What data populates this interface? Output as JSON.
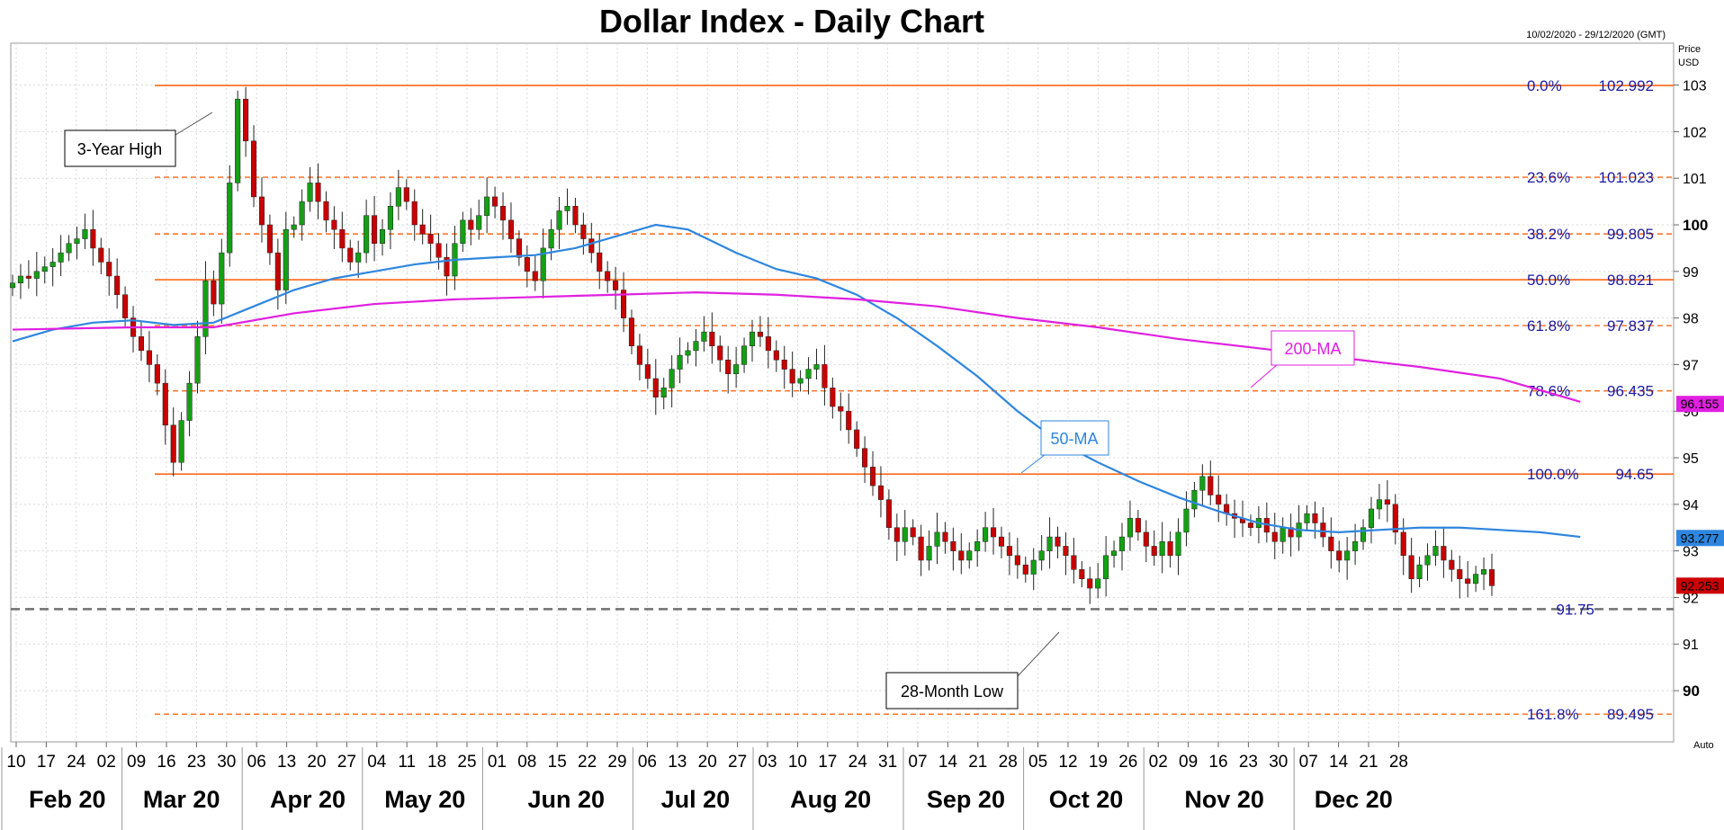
{
  "chart_data": {
    "type": "candlestick",
    "title": "Dollar Index - Daily Chart",
    "date_range": "10/02/2020 - 29/12/2020 (GMT)",
    "price_label": "Price",
    "currency_label": "USD",
    "auto_label": "Auto",
    "ylim": [
      88.9,
      103.9
    ],
    "y_ticks": [
      {
        "value": 90,
        "label": "90",
        "bold": true
      },
      {
        "value": 91,
        "label": "91"
      },
      {
        "value": 92,
        "label": "92"
      },
      {
        "value": 93,
        "label": "93"
      },
      {
        "value": 94,
        "label": "94"
      },
      {
        "value": 95,
        "label": "95"
      },
      {
        "value": 96,
        "label": "96"
      },
      {
        "value": 97,
        "label": "97"
      },
      {
        "value": 98,
        "label": "98"
      },
      {
        "value": 99,
        "label": "99"
      },
      {
        "value": 100,
        "label": "100",
        "bold": true
      },
      {
        "value": 101,
        "label": "101"
      },
      {
        "value": 102,
        "label": "102"
      },
      {
        "value": 103,
        "label": "103"
      }
    ],
    "x_day_labels": [
      "10",
      "17",
      "24",
      "02",
      "09",
      "16",
      "23",
      "30",
      "06",
      "13",
      "20",
      "27",
      "04",
      "11",
      "18",
      "25",
      "01",
      "08",
      "15",
      "22",
      "29",
      "06",
      "13",
      "20",
      "27",
      "03",
      "10",
      "17",
      "24",
      "31",
      "07",
      "14",
      "21",
      "28",
      "05",
      "12",
      "19",
      "26",
      "02",
      "09",
      "16",
      "23",
      "30",
      "07",
      "14",
      "21",
      "28"
    ],
    "x_month_labels": [
      "Feb 20",
      "Mar 20",
      "Apr 20",
      "May 20",
      "Jun 20",
      "Jul 20",
      "Aug 20",
      "Sep 20",
      "Oct 20",
      "Nov 20",
      "Dec 20"
    ],
    "fibonacci_levels": [
      {
        "pct": "0.0%",
        "value": "102.992",
        "price": 102.992,
        "style": "solid"
      },
      {
        "pct": "23.6%",
        "value": "101.023",
        "price": 101.023,
        "style": "dashed"
      },
      {
        "pct": "38.2%",
        "value": "99.805",
        "price": 99.805,
        "style": "dashed"
      },
      {
        "pct": "50.0%",
        "value": "98.821",
        "price": 98.821,
        "style": "solid"
      },
      {
        "pct": "61.8%",
        "value": "97.837",
        "price": 97.837,
        "style": "dashed"
      },
      {
        "pct": "78.6%",
        "value": "96.435",
        "price": 96.435,
        "style": "dashed"
      },
      {
        "pct": "100.0%",
        "value": "94.65",
        "price": 94.65,
        "style": "solid"
      },
      {
        "pct": "161.8%",
        "value": "89.495",
        "price": 89.495,
        "style": "dashed"
      }
    ],
    "support_line": {
      "value": "91.75",
      "price": 91.75
    },
    "annotations": [
      {
        "text": "3-Year High"
      },
      {
        "text": "28-Month Low"
      }
    ],
    "moving_averages": [
      {
        "name": "50-MA",
        "color": "#2e86de",
        "points": [
          [
            0,
            97.5
          ],
          [
            5,
            97.75
          ],
          [
            10,
            97.9
          ],
          [
            15,
            97.95
          ],
          [
            20,
            97.85
          ],
          [
            25,
            97.9
          ],
          [
            30,
            98.25
          ],
          [
            35,
            98.6
          ],
          [
            40,
            98.85
          ],
          [
            45,
            99.0
          ],
          [
            50,
            99.15
          ],
          [
            55,
            99.25
          ],
          [
            60,
            99.3
          ],
          [
            65,
            99.35
          ],
          [
            70,
            99.5
          ],
          [
            75,
            99.75
          ],
          [
            80,
            100.0
          ],
          [
            84,
            99.9
          ],
          [
            90,
            99.4
          ],
          [
            95,
            99.05
          ],
          [
            100,
            98.85
          ],
          [
            105,
            98.5
          ],
          [
            110,
            98.0
          ],
          [
            115,
            97.4
          ],
          [
            120,
            96.75
          ],
          [
            125,
            96.0
          ],
          [
            130,
            95.35
          ],
          [
            135,
            94.9
          ],
          [
            140,
            94.5
          ],
          [
            145,
            94.15
          ],
          [
            150,
            93.85
          ],
          [
            155,
            93.6
          ],
          [
            160,
            93.45
          ],
          [
            165,
            93.4
          ],
          [
            170,
            93.45
          ],
          [
            175,
            93.5
          ],
          [
            180,
            93.5
          ],
          [
            185,
            93.45
          ],
          [
            190,
            93.4
          ],
          [
            195,
            93.3
          ]
        ]
      },
      {
        "name": "200-MA",
        "color": "#e020e0",
        "points": [
          [
            0,
            97.75
          ],
          [
            15,
            97.8
          ],
          [
            25,
            97.8
          ],
          [
            35,
            98.1
          ],
          [
            45,
            98.3
          ],
          [
            55,
            98.4
          ],
          [
            65,
            98.45
          ],
          [
            75,
            98.5
          ],
          [
            85,
            98.55
          ],
          [
            95,
            98.5
          ],
          [
            105,
            98.4
          ],
          [
            115,
            98.25
          ],
          [
            125,
            98.0
          ],
          [
            135,
            97.8
          ],
          [
            145,
            97.55
          ],
          [
            155,
            97.35
          ],
          [
            165,
            97.15
          ],
          [
            175,
            96.95
          ],
          [
            185,
            96.7
          ],
          [
            195,
            96.2
          ]
        ]
      }
    ],
    "last_values": [
      {
        "label": "96.155",
        "price": 96.155,
        "color": "#e020e0"
      },
      {
        "label": "93.277",
        "price": 93.277,
        "color": "#2e86de"
      },
      {
        "label": "92.253",
        "price": 92.253,
        "color": "#cc0000"
      }
    ],
    "closes": [
      98.75,
      98.9,
      98.85,
      99.0,
      99.1,
      99.2,
      99.4,
      99.6,
      99.7,
      99.9,
      99.5,
      99.2,
      98.9,
      98.5,
      98.0,
      97.6,
      97.3,
      97.0,
      96.6,
      95.7,
      94.9,
      95.8,
      96.6,
      97.6,
      98.8,
      98.3,
      99.4,
      100.9,
      102.7,
      101.8,
      100.6,
      100.0,
      99.4,
      98.6,
      99.9,
      100.0,
      100.5,
      100.9,
      100.5,
      100.1,
      99.9,
      99.5,
      99.2,
      99.4,
      100.2,
      99.6,
      99.9,
      100.4,
      100.8,
      100.5,
      100.0,
      99.8,
      99.6,
      99.3,
      98.9,
      99.6,
      100.1,
      99.9,
      100.2,
      100.6,
      100.4,
      100.1,
      99.7,
      99.3,
      99.0,
      98.8,
      99.5,
      99.9,
      100.3,
      100.4,
      100.0,
      99.7,
      99.4,
      99.0,
      98.8,
      98.6,
      98.0,
      97.4,
      97.0,
      96.7,
      96.3,
      96.5,
      96.9,
      97.2,
      97.3,
      97.5,
      97.7,
      97.4,
      97.1,
      96.8,
      97.0,
      97.4,
      97.7,
      97.6,
      97.3,
      97.1,
      96.9,
      96.6,
      96.7,
      96.9,
      97.0,
      96.5,
      96.1,
      96.0,
      95.6,
      95.2,
      94.8,
      94.4,
      94.1,
      93.5,
      93.2,
      93.5,
      93.3,
      92.8,
      93.1,
      93.4,
      93.2,
      93.0,
      92.8,
      93.0,
      93.2,
      93.5,
      93.3,
      93.1,
      92.9,
      92.7,
      92.5,
      92.8,
      93.0,
      93.3,
      93.1,
      92.9,
      92.6,
      92.4,
      92.2,
      92.4,
      92.9,
      93.0,
      93.3,
      93.7,
      93.4,
      93.1,
      92.9,
      93.2,
      92.9,
      93.4,
      93.9,
      94.3,
      94.6,
      94.2,
      94.0,
      93.8,
      93.7,
      93.6,
      93.5,
      93.7,
      93.4,
      93.2,
      93.5,
      93.3,
      93.6,
      93.8,
      93.6,
      93.3,
      93.0,
      92.8,
      93.0,
      93.2,
      93.5,
      93.9,
      94.1,
      94.0,
      93.4,
      92.9,
      92.4,
      92.7,
      92.9,
      93.1,
      92.8,
      92.6,
      92.4,
      92.3,
      92.5,
      92.6,
      92.253
    ]
  }
}
